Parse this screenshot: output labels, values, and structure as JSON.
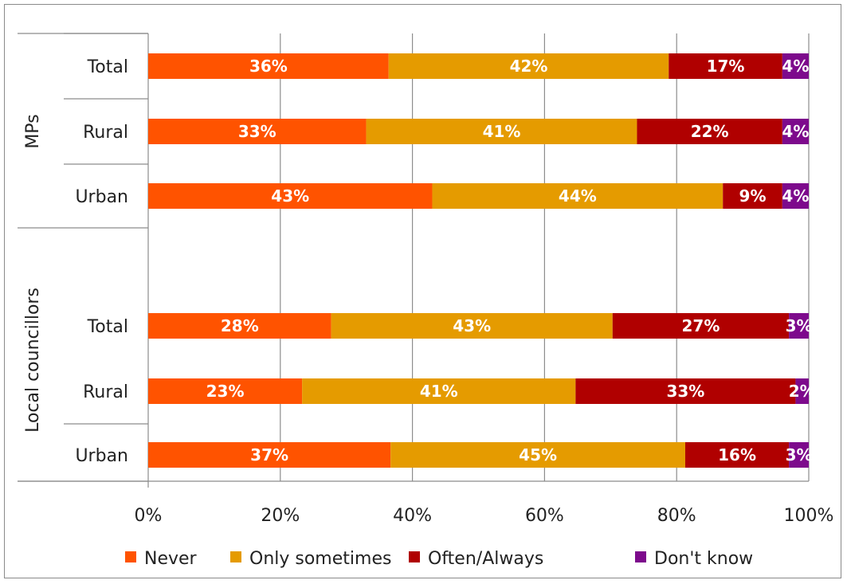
{
  "chart_data": {
    "type": "bar",
    "orientation": "horizontal",
    "stacked": true,
    "groups": [
      {
        "name": "MPs",
        "categories": [
          "Total",
          "Rural",
          "Urban"
        ]
      },
      {
        "name": "Local councillors",
        "categories": [
          "Total",
          "Rural",
          "Urban"
        ]
      }
    ],
    "series": [
      {
        "name": "Never",
        "color": "#ff5300",
        "values": [
          36.4,
          33.0,
          43.0,
          27.7,
          23.3,
          36.7
        ],
        "labels": [
          "36%",
          "33%",
          "43%",
          "28%",
          "23%",
          "37%"
        ]
      },
      {
        "name": "Only sometimes",
        "color": "#e59b00",
        "values": [
          42.4,
          41.0,
          44.0,
          42.6,
          41.4,
          44.6
        ],
        "labels": [
          "42%",
          "41%",
          "44%",
          "43%",
          "41%",
          "45%"
        ]
      },
      {
        "name": "Often/Always",
        "color": "#b00000",
        "values": [
          17.2,
          22.0,
          9.0,
          26.7,
          33.3,
          15.7
        ],
        "labels": [
          "17%",
          "22%",
          "9%",
          "27%",
          "33%",
          "16%"
        ]
      },
      {
        "name": "Don't know",
        "color": "#7d0a8c",
        "values": [
          4.0,
          4.0,
          4.0,
          3.0,
          2.0,
          3.0
        ],
        "labels": [
          "4%",
          "4%",
          "4%",
          "3%",
          "2%",
          "3%"
        ]
      }
    ],
    "xlim": [
      0,
      100
    ],
    "xticks": [
      "0%",
      "20%",
      "40%",
      "60%",
      "80%",
      "100%"
    ],
    "xlabel": "",
    "ylabel": "",
    "title": "",
    "grid": true,
    "legend": "bottom"
  }
}
